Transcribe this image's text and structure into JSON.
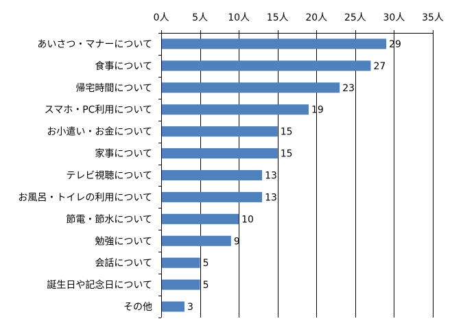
{
  "chart_data": {
    "type": "bar",
    "orientation": "horizontal",
    "categories": [
      "あいさつ・マナーについて",
      "食事について",
      "帰宅時間について",
      "スマホ・PC利用について",
      "お小遣い・お金について",
      "家事について",
      "テレビ視聴について",
      "お風呂・トイレの利用について",
      "節電・節水について",
      "勉強について",
      "会話について",
      "誕生日や記念日について",
      "その他"
    ],
    "values": [
      29,
      27,
      23,
      19,
      15,
      15,
      13,
      13,
      10,
      9,
      5,
      5,
      3
    ],
    "data_labels": [
      "29",
      "27",
      "23",
      "19",
      "15",
      "15",
      "13",
      "13",
      "10",
      "9",
      "5",
      "5",
      "3"
    ],
    "x_ticks": [
      0,
      5,
      10,
      15,
      20,
      25,
      30,
      35
    ],
    "x_tick_labels": [
      "0人",
      "5人",
      "10人",
      "15人",
      "20人",
      "25人",
      "30人",
      "35人"
    ],
    "xlim": [
      0,
      35
    ],
    "axis_position": "top",
    "grid": true,
    "bar_color": "#4F81BD",
    "title": "",
    "xlabel": "",
    "ylabel": ""
  }
}
